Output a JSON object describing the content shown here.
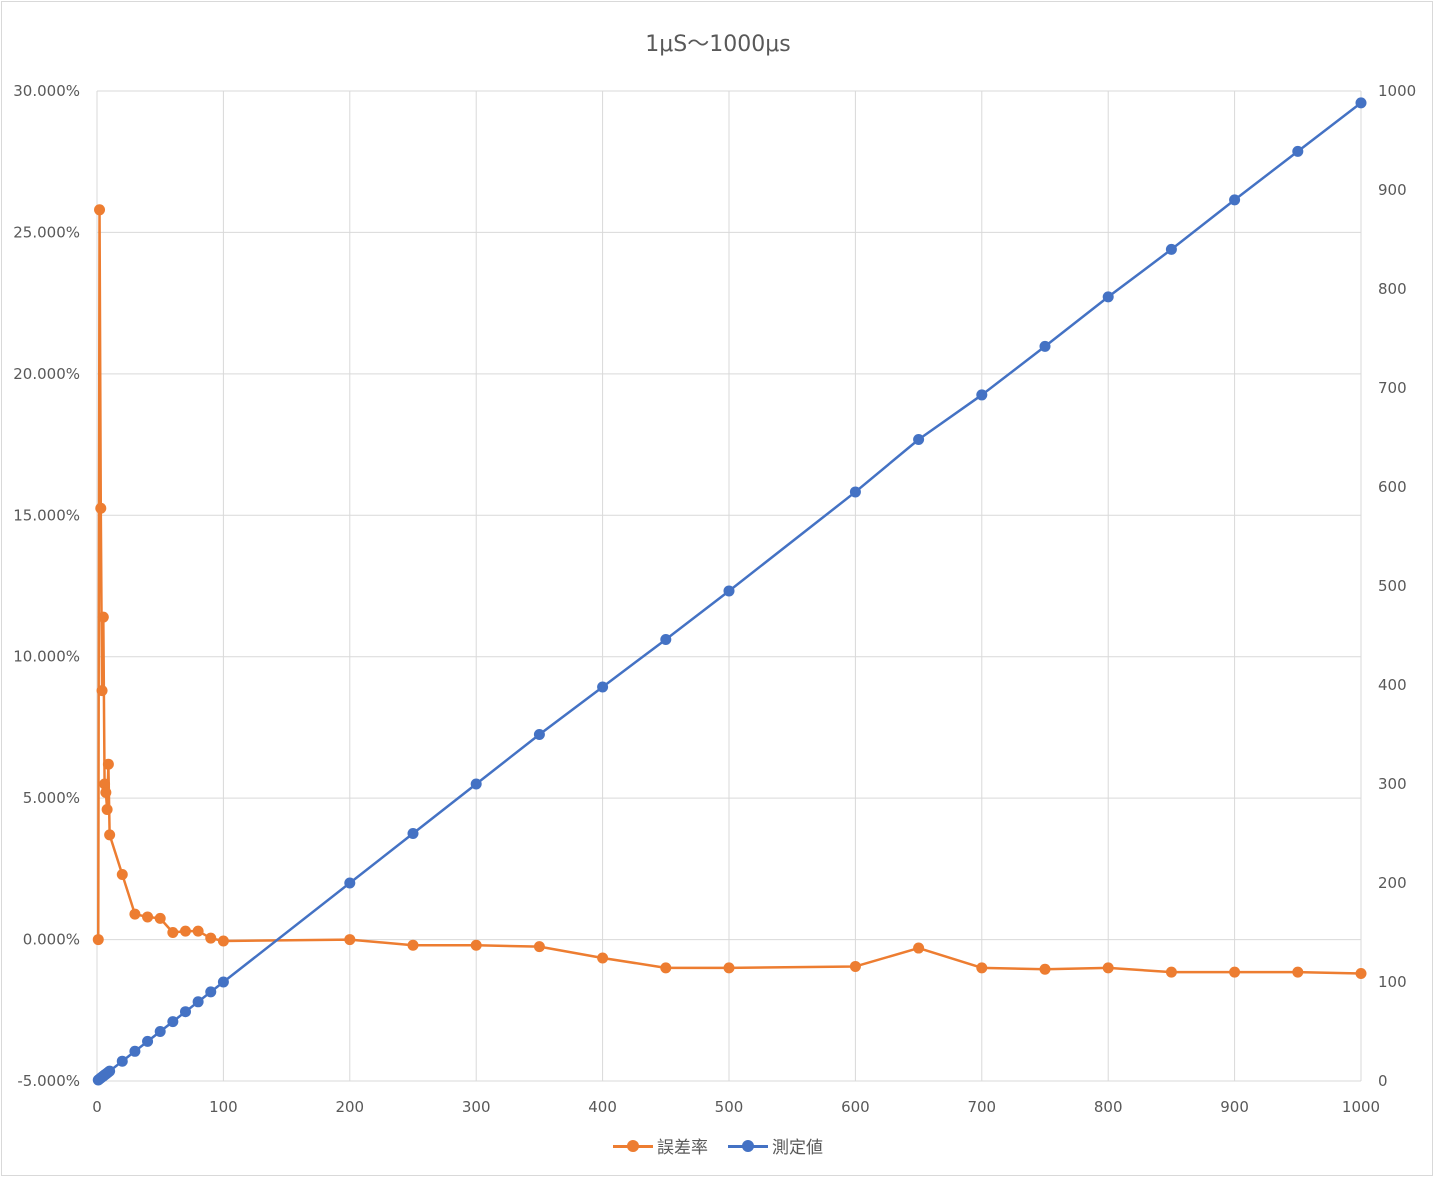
{
  "chart_data": {
    "type": "line",
    "title": "1μS～1000μs",
    "x_ticks": [
      "0",
      "100",
      "200",
      "300",
      "400",
      "500",
      "600",
      "700",
      "800",
      "900",
      "1000"
    ],
    "x_range": [
      0,
      1000
    ],
    "y_left_ticks": [
      "30.000%",
      "25.000%",
      "20.000%",
      "15.000%",
      "10.000%",
      "5.000%",
      "0.000%",
      "-5.000%"
    ],
    "y_left_range": [
      -5,
      30
    ],
    "y_right_ticks": [
      "1000",
      "900",
      "800",
      "700",
      "600",
      "500",
      "400",
      "300",
      "200",
      "100",
      "0"
    ],
    "y_right_range": [
      0,
      1000
    ],
    "grid": true,
    "legend_position": "bottom",
    "series": [
      {
        "name": "誤差率",
        "axis": "left",
        "unit": "%",
        "color": "#ED7D31",
        "points": [
          [
            1,
            0.0
          ],
          [
            2,
            25.8
          ],
          [
            3,
            15.25
          ],
          [
            4,
            8.8
          ],
          [
            5,
            11.4
          ],
          [
            6,
            5.5
          ],
          [
            7,
            5.2
          ],
          [
            8,
            4.6
          ],
          [
            9,
            6.2
          ],
          [
            10,
            3.7
          ],
          [
            20,
            2.3
          ],
          [
            30,
            0.9
          ],
          [
            40,
            0.8
          ],
          [
            50,
            0.75
          ],
          [
            60,
            0.25
          ],
          [
            70,
            0.3
          ],
          [
            80,
            0.3
          ],
          [
            90,
            0.05
          ],
          [
            100,
            -0.05
          ],
          [
            200,
            0.0
          ],
          [
            250,
            -0.2
          ],
          [
            300,
            -0.2
          ],
          [
            350,
            -0.25
          ],
          [
            400,
            -0.65
          ],
          [
            450,
            -1.0
          ],
          [
            500,
            -1.0
          ],
          [
            600,
            -0.95
          ],
          [
            650,
            -0.3
          ],
          [
            700,
            -1.0
          ],
          [
            750,
            -1.05
          ],
          [
            800,
            -1.0
          ],
          [
            850,
            -1.15
          ],
          [
            900,
            -1.15
          ],
          [
            950,
            -1.15
          ],
          [
            1000,
            -1.2
          ]
        ]
      },
      {
        "name": "測定値",
        "axis": "right",
        "color": "#4472C4",
        "points": [
          [
            1,
            1
          ],
          [
            2,
            2
          ],
          [
            3,
            3
          ],
          [
            4,
            4
          ],
          [
            5,
            5
          ],
          [
            6,
            6
          ],
          [
            7,
            7
          ],
          [
            8,
            8
          ],
          [
            9,
            9
          ],
          [
            10,
            10
          ],
          [
            20,
            20
          ],
          [
            30,
            30
          ],
          [
            40,
            40
          ],
          [
            50,
            50
          ],
          [
            60,
            60
          ],
          [
            70,
            70
          ],
          [
            80,
            80
          ],
          [
            90,
            90
          ],
          [
            100,
            100
          ],
          [
            200,
            200
          ],
          [
            250,
            250
          ],
          [
            300,
            300
          ],
          [
            350,
            350
          ],
          [
            400,
            398
          ],
          [
            450,
            446
          ],
          [
            500,
            495
          ],
          [
            600,
            595
          ],
          [
            650,
            648
          ],
          [
            700,
            693
          ],
          [
            750,
            742
          ],
          [
            800,
            792
          ],
          [
            850,
            840
          ],
          [
            900,
            890
          ],
          [
            950,
            939
          ],
          [
            1000,
            988
          ]
        ]
      }
    ]
  }
}
